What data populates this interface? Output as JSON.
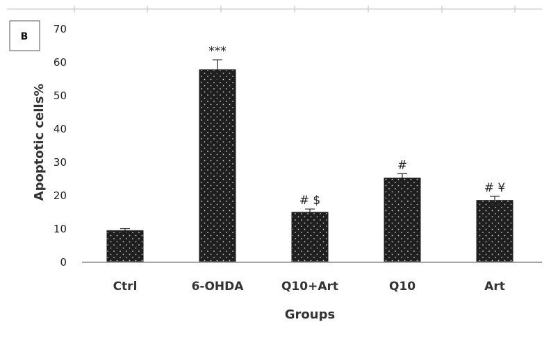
{
  "chart_data": {
    "type": "bar",
    "panel_label": "B",
    "categories": [
      "Ctrl",
      "6-OHDA",
      "Q10+Art",
      "Q10",
      "Art"
    ],
    "values": [
      9.5,
      57.8,
      15.0,
      25.3,
      18.6
    ],
    "errors": [
      0.6,
      3.0,
      1.0,
      1.3,
      1.2
    ],
    "annotations": [
      "",
      "***",
      "# $",
      "#",
      "# ¥"
    ],
    "xlabel": "Groups",
    "ylabel": "Apoptotic cells%",
    "ylim": [
      0,
      70
    ],
    "yticks": [
      0,
      10,
      20,
      30,
      40,
      50,
      60,
      70
    ],
    "grid": false,
    "bar_color": "#1f1f1f",
    "axis_color": "#a6a6a6"
  }
}
